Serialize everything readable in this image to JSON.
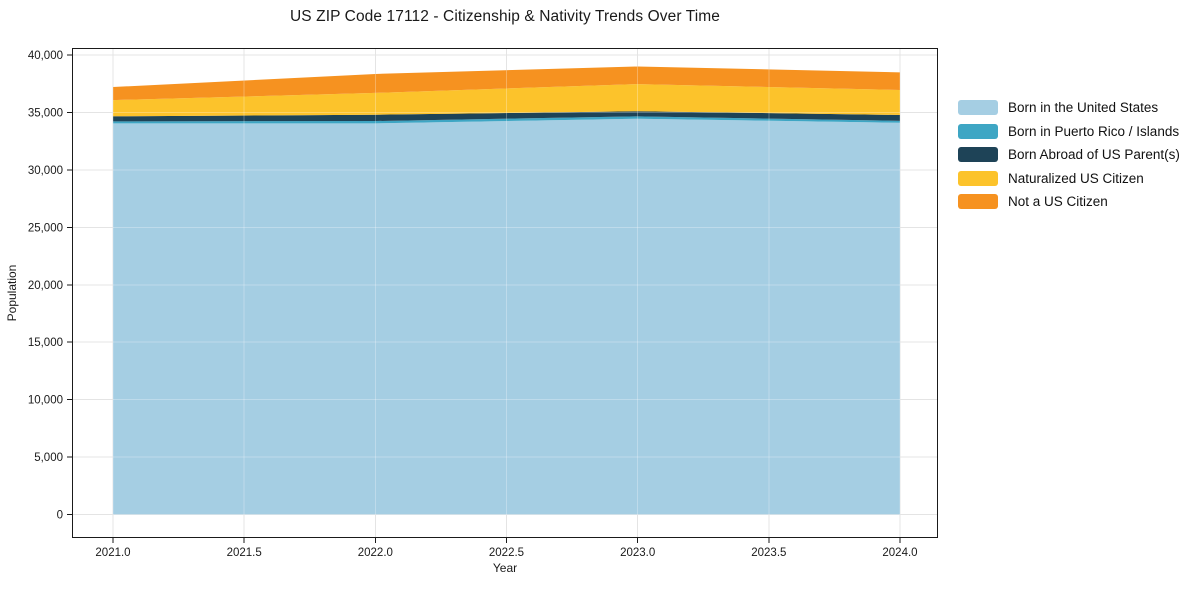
{
  "title": "US ZIP Code 17112 - Citizenship & Nativity Trends Over Time",
  "chart_data": {
    "type": "area",
    "stacked": true,
    "title": "US ZIP Code 17112 - Citizenship & Nativity Trends Over Time",
    "xlabel": "Year",
    "ylabel": "Population",
    "x": [
      2021,
      2022,
      2023,
      2024
    ],
    "series": [
      {
        "name": "Born in the United States",
        "color": "#A5CEE3",
        "values": [
          34050,
          34050,
          34450,
          34100
        ]
      },
      {
        "name": "Born in Puerto Rico / Islands",
        "color": "#3EA6C4",
        "values": [
          175,
          200,
          210,
          170
        ]
      },
      {
        "name": "Born Abroad of US Parent(s)",
        "color": "#1E4357",
        "values": [
          440,
          550,
          440,
          510
        ]
      },
      {
        "name": "Naturalized US Citizen",
        "color": "#FCC32B",
        "values": [
          1410,
          1900,
          2370,
          2170
        ]
      },
      {
        "name": "Not a US Citizen",
        "color": "#F69220",
        "values": [
          1135,
          1650,
          1530,
          1540
        ]
      }
    ],
    "xlim": [
      2020.84,
      2024.15
    ],
    "ylim": [
      -2090,
      40610
    ],
    "x_ticks": [
      2021.0,
      2021.5,
      2022.0,
      2022.5,
      2023.0,
      2023.5,
      2024.0
    ],
    "x_tick_labels": [
      "2021.0",
      "2021.5",
      "2022.0",
      "2022.5",
      "2023.0",
      "2023.5",
      "2024.0"
    ],
    "y_ticks": [
      0,
      5000,
      10000,
      15000,
      20000,
      25000,
      30000,
      35000,
      40000
    ],
    "y_tick_labels": [
      "0",
      "5,000",
      "10,000",
      "15,000",
      "20,000",
      "25,000",
      "30,000",
      "35,000",
      "40,000"
    ],
    "grid": true,
    "grid_color": "#e4e4e4",
    "spine_color": "#1a1a1a",
    "legend_position": "outside right"
  }
}
